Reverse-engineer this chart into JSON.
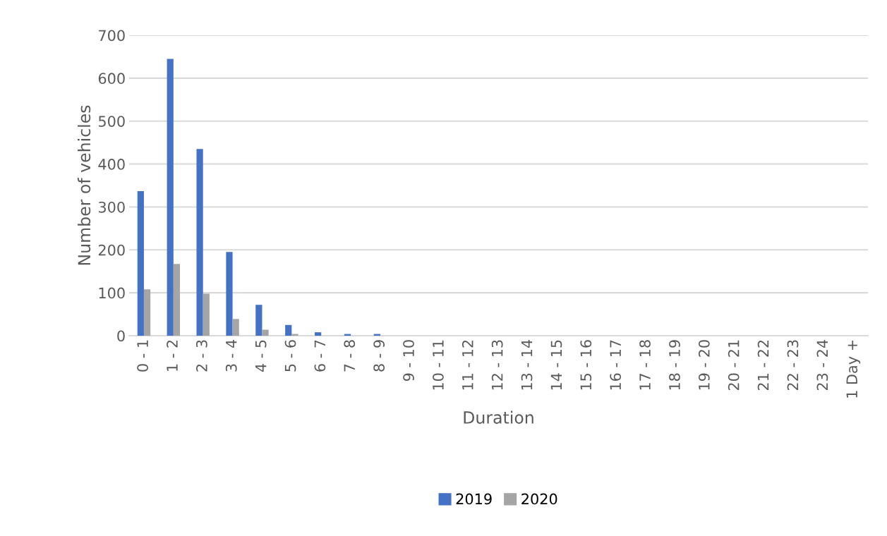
{
  "chart_data": {
    "type": "bar",
    "xlabel": "Duration",
    "ylabel": "Number of vehicles",
    "categories": [
      "0 - 1",
      "1 - 2",
      "2 - 3",
      "3 - 4",
      "4 - 5",
      "5 - 6",
      "6 - 7",
      "7 - 8",
      "8 - 9",
      "9 - 10",
      "10 - 11",
      "11 - 12",
      "12 - 13",
      "13 - 14",
      "14 - 15",
      "15 - 16",
      "16 - 17",
      "17 - 18",
      "18 - 19",
      "19 - 20",
      "20 - 21",
      "21 - 22",
      "22 - 23",
      "23 - 24",
      "1 Day +"
    ],
    "series": [
      {
        "name": "2019",
        "color": "#4472c4",
        "values": [
          337,
          645,
          435,
          195,
          72,
          25,
          8,
          4,
          4,
          0,
          0,
          0,
          0,
          0,
          0,
          0,
          0,
          0,
          0,
          0,
          0,
          0,
          0,
          0,
          0
        ]
      },
      {
        "name": "2020",
        "color": "#a5a5a5",
        "values": [
          108,
          167,
          98,
          39,
          14,
          4,
          0,
          0,
          0,
          0,
          0,
          0,
          0,
          0,
          0,
          0,
          0,
          0,
          0,
          0,
          0,
          0,
          0,
          0,
          0
        ]
      }
    ],
    "ylim": [
      0,
      700
    ],
    "yticks": [
      0,
      100,
      200,
      300,
      400,
      500,
      600,
      700
    ],
    "grid": "y",
    "legend": "bottom"
  }
}
